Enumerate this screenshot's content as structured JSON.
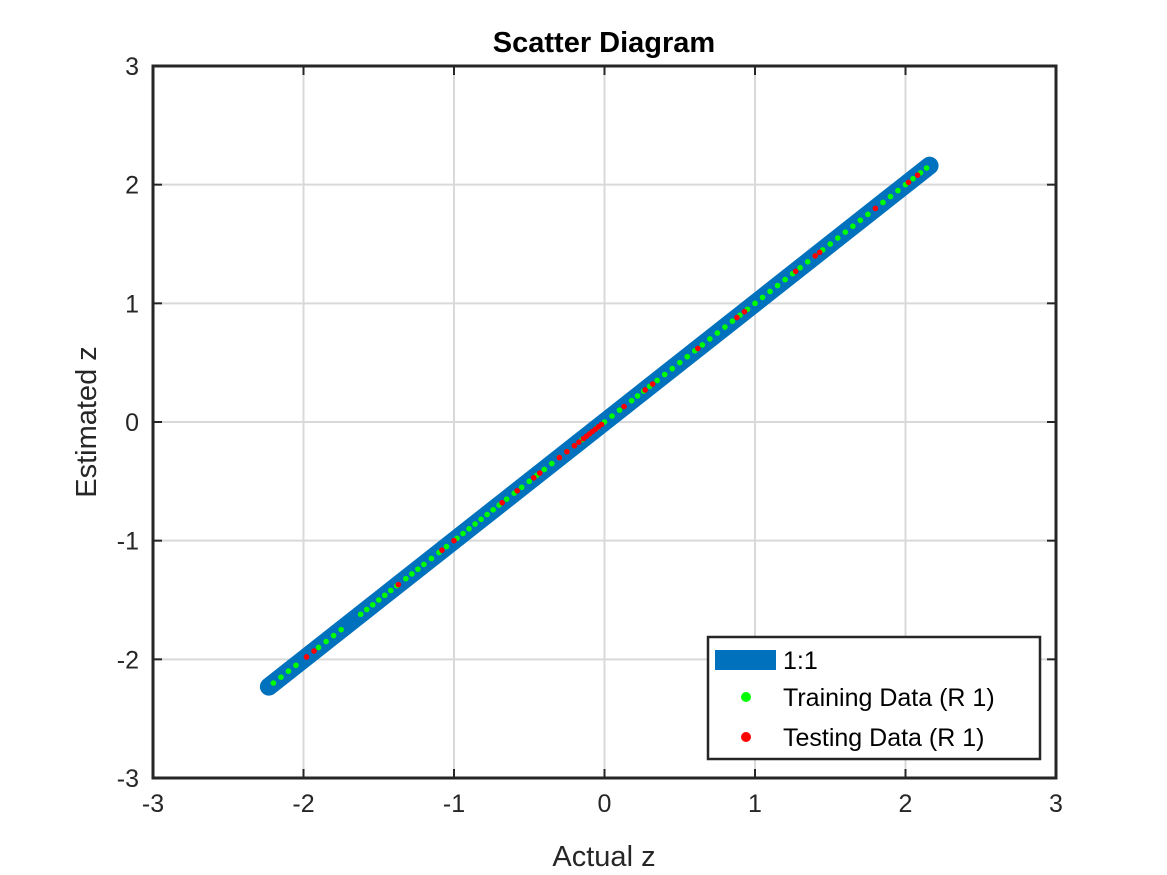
{
  "chart_data": {
    "type": "scatter",
    "title": "Scatter Diagram",
    "xlabel": "Actual z",
    "ylabel": "Estimated z",
    "xlim": [
      -3,
      3
    ],
    "ylim": [
      -3,
      3
    ],
    "xticks": [
      -3,
      -2,
      -1,
      0,
      1,
      2,
      3
    ],
    "yticks": [
      -3,
      -2,
      -1,
      0,
      1,
      2,
      3
    ],
    "grid": true,
    "legend_position": "bottom-right",
    "series": [
      {
        "name": "1:1",
        "kind": "line",
        "color": "#0072BD",
        "x": [
          -2.23,
          2.16
        ],
        "y": [
          -2.23,
          2.16
        ]
      },
      {
        "name": "Training Data (R 1)",
        "kind": "points",
        "color": "#00FF00",
        "x": [
          -2.2,
          -2.15,
          -2.1,
          -2.05,
          -1.9,
          -1.85,
          -1.8,
          -1.75,
          -1.62,
          -1.58,
          -1.54,
          -1.5,
          -1.46,
          -1.42,
          -1.38,
          -1.32,
          -1.28,
          -1.24,
          -1.2,
          -1.15,
          -1.1,
          -1.05,
          -0.98,
          -0.94,
          -0.9,
          -0.86,
          -0.82,
          -0.78,
          -0.74,
          -0.7,
          -0.65,
          -0.6,
          -0.55,
          -0.5,
          -0.45,
          -0.4,
          -0.35,
          -0.3,
          -0.25,
          -0.2,
          -0.15,
          -0.1,
          -0.05,
          0.0,
          0.05,
          0.1,
          0.18,
          0.22,
          0.26,
          0.3,
          0.35,
          0.4,
          0.45,
          0.5,
          0.55,
          0.6,
          0.65,
          0.7,
          0.75,
          0.8,
          0.85,
          0.9,
          0.95,
          1.0,
          1.05,
          1.1,
          1.15,
          1.2,
          1.25,
          1.3,
          1.35,
          1.4,
          1.45,
          1.5,
          1.55,
          1.6,
          1.65,
          1.7,
          1.75,
          1.85,
          1.9,
          1.95,
          2.0,
          2.05,
          2.1,
          2.14
        ],
        "y": [
          -2.2,
          -2.15,
          -2.1,
          -2.05,
          -1.9,
          -1.85,
          -1.8,
          -1.75,
          -1.62,
          -1.58,
          -1.54,
          -1.5,
          -1.46,
          -1.42,
          -1.38,
          -1.32,
          -1.28,
          -1.24,
          -1.2,
          -1.15,
          -1.1,
          -1.05,
          -0.98,
          -0.94,
          -0.9,
          -0.86,
          -0.82,
          -0.78,
          -0.74,
          -0.7,
          -0.65,
          -0.6,
          -0.55,
          -0.5,
          -0.45,
          -0.4,
          -0.35,
          -0.3,
          -0.25,
          -0.2,
          -0.15,
          -0.1,
          -0.05,
          0.0,
          0.05,
          0.1,
          0.18,
          0.22,
          0.26,
          0.3,
          0.35,
          0.4,
          0.45,
          0.5,
          0.55,
          0.6,
          0.65,
          0.7,
          0.75,
          0.8,
          0.85,
          0.9,
          0.95,
          1.0,
          1.05,
          1.1,
          1.15,
          1.2,
          1.25,
          1.3,
          1.35,
          1.4,
          1.45,
          1.5,
          1.55,
          1.6,
          1.65,
          1.7,
          1.75,
          1.85,
          1.9,
          1.95,
          2.0,
          2.05,
          2.1,
          2.14
        ]
      },
      {
        "name": "Testing Data (R 1)",
        "kind": "points",
        "color": "#FF0000",
        "x": [
          -1.98,
          -1.93,
          -1.37,
          -1.08,
          -1.0,
          -0.68,
          -0.58,
          -0.47,
          -0.43,
          -0.3,
          -0.25,
          -0.2,
          -0.17,
          -0.14,
          -0.12,
          -0.1,
          -0.08,
          -0.06,
          -0.04,
          -0.02,
          0.13,
          0.27,
          0.32,
          0.62,
          0.88,
          0.93,
          1.27,
          1.4,
          1.43,
          1.8,
          2.02,
          2.08
        ],
        "y": [
          -1.98,
          -1.93,
          -1.37,
          -1.08,
          -1.0,
          -0.68,
          -0.58,
          -0.47,
          -0.43,
          -0.3,
          -0.25,
          -0.2,
          -0.17,
          -0.14,
          -0.12,
          -0.1,
          -0.08,
          -0.06,
          -0.04,
          -0.02,
          0.13,
          0.27,
          0.32,
          0.62,
          0.88,
          0.93,
          1.27,
          1.4,
          1.43,
          1.8,
          2.02,
          2.08
        ]
      }
    ]
  }
}
